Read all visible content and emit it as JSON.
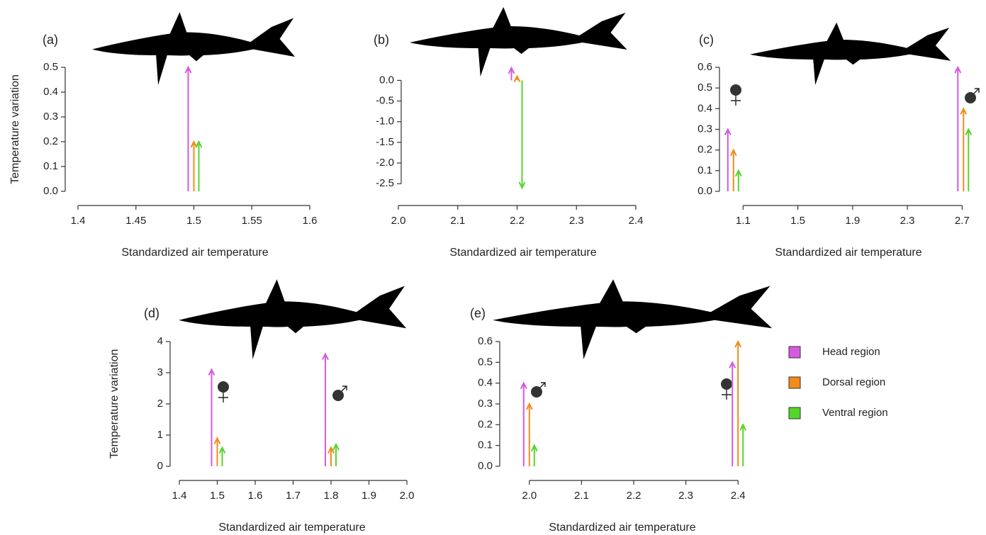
{
  "chart_data": [
    {
      "type": "arrow",
      "label": "(a)",
      "x_label": "Standardized air temperature",
      "y_label": "Temperature variation",
      "x": [
        1.5
      ],
      "xlim": [
        1.4,
        1.6
      ],
      "xticks": [
        1.4,
        1.45,
        1.5,
        1.55,
        1.6
      ],
      "ylim": [
        0,
        0.5
      ],
      "yticks": [
        {
          "value": 0,
          "label": "0.0"
        },
        0.1,
        0.2,
        0.3,
        0.4,
        0.5
      ],
      "series": [
        {
          "color": "#d65ae0",
          "values": [
            0.5
          ]
        },
        {
          "color": "#f28c1a",
          "values": [
            0.2
          ]
        },
        {
          "color": "#55d62a",
          "values": [
            0.2
          ]
        }
      ]
    },
    {
      "type": "arrow",
      "label": "(b)",
      "x_label": "Standardized air temperature",
      "x": [
        2.2
      ],
      "xlim": [
        2.0,
        2.4
      ],
      "xticks": [
        {
          "value": 2,
          "label": "2.0"
        },
        2.1,
        2.2,
        2.3,
        2.4
      ],
      "ylim": [
        -2.65,
        0.35
      ],
      "yticks": [
        {
          "value": 0,
          "label": "0.0"
        },
        -0.5,
        {
          "value": -1,
          "label": "-1.0"
        },
        -1.5,
        {
          "value": -2,
          "label": "-2.0"
        },
        -2.5
      ],
      "series": [
        {
          "color": "#d65ae0",
          "values": [
            0.3
          ]
        },
        {
          "color": "#f28c1a",
          "values": [
            0.1
          ]
        },
        {
          "color": "#55d62a",
          "values": [
            -2.6
          ]
        }
      ]
    },
    {
      "type": "arrow",
      "label": "(c)",
      "x_label": "Standardized air temperature",
      "x": [
        1.03,
        2.71
      ],
      "xlim": [
        1.0,
        2.75
      ],
      "xticks": [
        1.1,
        1.5,
        1.9,
        2.3,
        2.7
      ],
      "ylim": [
        0,
        0.6
      ],
      "yticks": [
        {
          "value": 0,
          "label": "0.0"
        },
        0.1,
        0.2,
        0.3,
        0.4,
        0.5,
        0.6
      ],
      "series": [
        {
          "color": "#d65ae0",
          "values": [
            0.3,
            0.6
          ]
        },
        {
          "color": "#f28c1a",
          "values": [
            0.2,
            0.4
          ]
        },
        {
          "color": "#55d62a",
          "values": [
            0.1,
            0.3
          ]
        }
      ]
    },
    {
      "type": "arrow",
      "label": "(d)",
      "x_label": "Standardized air temperature",
      "y_label": "Temperature variation",
      "x": [
        1.5,
        1.8
      ],
      "xlim": [
        1.4,
        2.0
      ],
      "xticks": [
        1.4,
        1.5,
        1.6,
        1.7,
        1.8,
        1.9,
        {
          "value": 2,
          "label": "2.0"
        }
      ],
      "ylim": [
        0,
        4
      ],
      "yticks": [
        0,
        1,
        2,
        3,
        4
      ],
      "series": [
        {
          "color": "#d65ae0",
          "values": [
            3.1,
            3.6
          ]
        },
        {
          "color": "#f28c1a",
          "values": [
            0.9,
            0.6
          ]
        },
        {
          "color": "#55d62a",
          "values": [
            0.6,
            0.7
          ]
        }
      ]
    },
    {
      "type": "arrow",
      "label": "(e)",
      "x_label": "Standardized air temperature",
      "x": [
        2.0,
        2.4
      ],
      "xlim": [
        1.95,
        2.45
      ],
      "xticks": [
        {
          "value": 2,
          "label": "2.0"
        },
        2.1,
        2.2,
        2.3,
        2.4
      ],
      "ylim": [
        0,
        0.6
      ],
      "yticks": [
        {
          "value": 0,
          "label": "0.0"
        },
        0.1,
        0.2,
        0.3,
        0.4,
        0.5,
        0.6
      ],
      "series": [
        {
          "name": "Head region",
          "color": "#d65ae0",
          "values": [
            0.4,
            0.5
          ]
        },
        {
          "name": "Dorsal region",
          "color": "#f28c1a",
          "values": [
            0.3,
            0.6
          ]
        },
        {
          "name": "Ventral region",
          "color": "#55d62a",
          "values": [
            0.1,
            0.2
          ]
        }
      ]
    }
  ]
}
